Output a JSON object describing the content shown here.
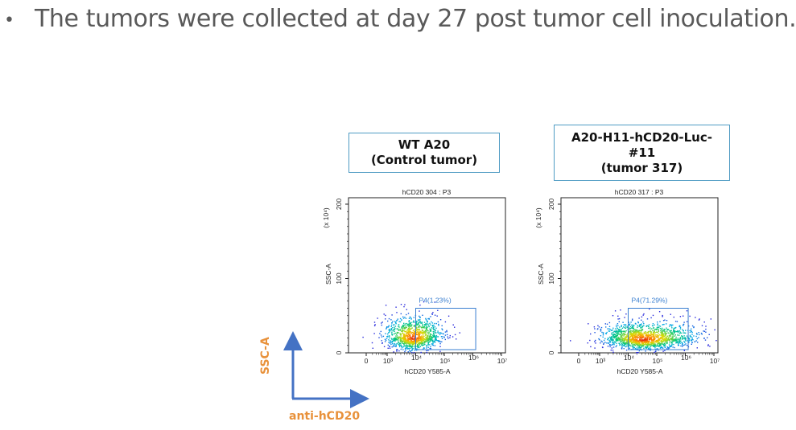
{
  "slide": {
    "bullet_symbol": "•",
    "heading": "The tumors were collected at day 27 post tumor cell inoculation."
  },
  "legend": {
    "y_label": "SSC-A",
    "x_label": "anti-hCD20",
    "arrow_color": "#4472c4",
    "label_color": "#e8913a"
  },
  "boxes": [
    {
      "lines": [
        "WT A20",
        "(Control tumor)"
      ]
    },
    {
      "lines": [
        "A20-H11-hCD20-Luc-",
        "#11",
        "(tumor 317)"
      ]
    }
  ],
  "chart_data": [
    {
      "type": "scatter",
      "title": "hCD20 304 : P3",
      "xlabel": "hCD20 Y585-A",
      "ylabel": "SSC-A",
      "y_multiplier_label": "(x 10⁴)",
      "x_ticks": [
        "0",
        "10³",
        "10⁴",
        "10⁵",
        "10⁶",
        "10⁷"
      ],
      "y_ticks": [
        "0",
        "100",
        "200"
      ],
      "x_scale": "biexponential",
      "ylim": [
        0,
        200
      ],
      "gate": {
        "name": "P4",
        "percent": "1.23%",
        "label": "P4(1.23%)"
      },
      "population": {
        "center_log10_x": 3.9,
        "center_y": 20,
        "spread": "tight"
      }
    },
    {
      "type": "scatter",
      "title": "hCD20 317 : P3",
      "xlabel": "hCD20 Y585-A",
      "ylabel": "SSC-A",
      "y_multiplier_label": "(x 10⁴)",
      "x_ticks": [
        "0",
        "10³",
        "10⁴",
        "10⁵",
        "10⁶",
        "10⁷"
      ],
      "y_ticks": [
        "0",
        "100",
        "200"
      ],
      "x_scale": "biexponential",
      "ylim": [
        0,
        200
      ],
      "gate": {
        "name": "P4",
        "percent": "71.29%",
        "label": "P4(71.29%)"
      },
      "population": {
        "center_log10_x": 4.5,
        "center_y": 18,
        "spread": "wide"
      }
    }
  ]
}
